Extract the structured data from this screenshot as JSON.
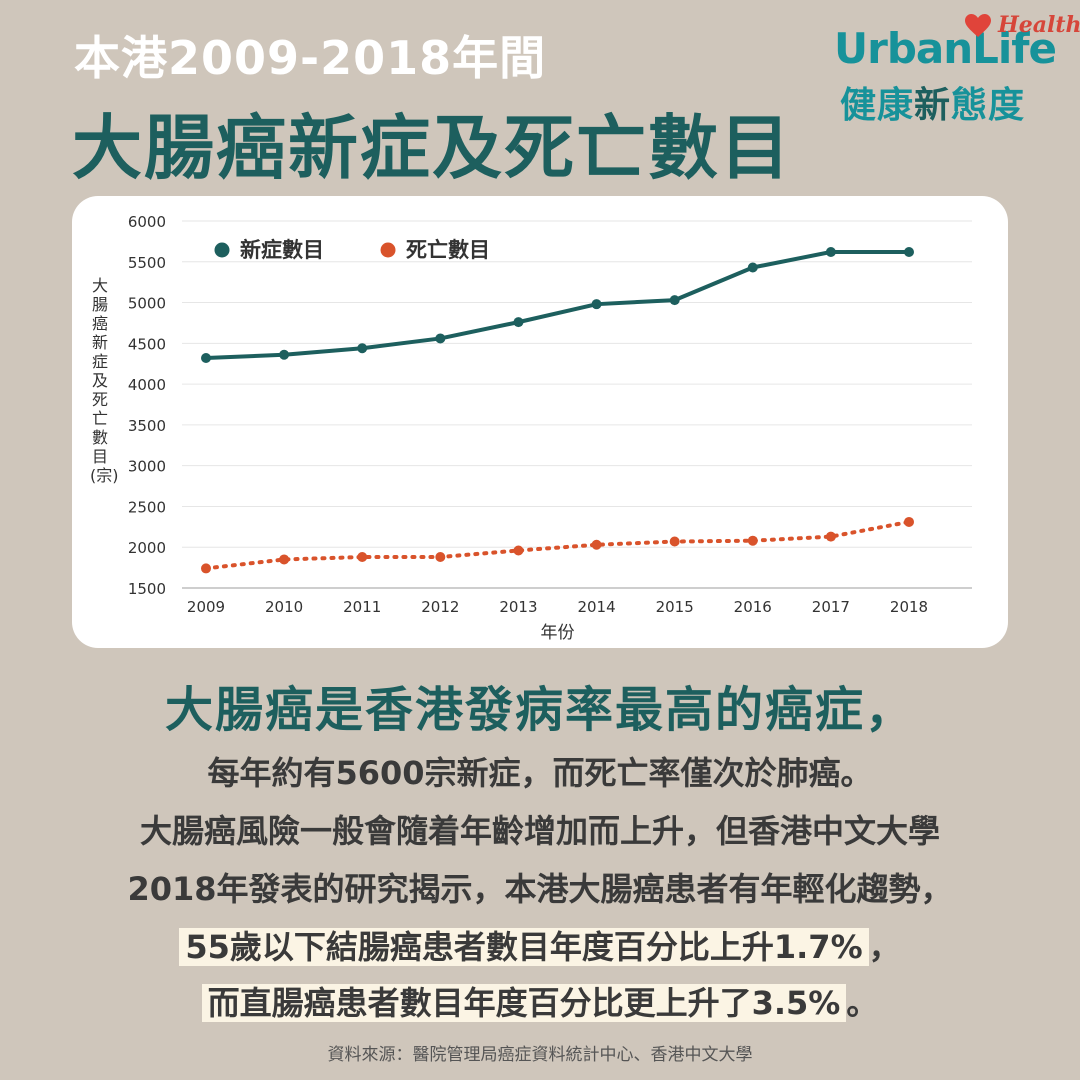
{
  "header": {
    "title_line1": "本港2009-2018年間",
    "title_line2": "大腸癌新症及死亡數目"
  },
  "logo": {
    "brand": "UrbanLife",
    "tag": "Health",
    "cn_part1": "健康",
    "cn_part2": "新",
    "cn_part3": "態度"
  },
  "chart_data": {
    "type": "line",
    "title": "",
    "xlabel": "年份",
    "ylabel": "大腸癌新症及死亡數目(宗)",
    "x": [
      "2009",
      "2010",
      "2011",
      "2012",
      "2013",
      "2014",
      "2015",
      "2016",
      "2017",
      "2018"
    ],
    "ylim": [
      1500,
      6000
    ],
    "yticks": [
      1500,
      2000,
      2500,
      3000,
      3500,
      4000,
      4500,
      5000,
      5500,
      6000
    ],
    "grid": true,
    "legend": "top-left",
    "series": [
      {
        "name": "新症數目",
        "color": "#1d5f5e",
        "style": "solid",
        "values": [
          4320,
          4360,
          4440,
          4560,
          4760,
          4980,
          5030,
          5430,
          5620,
          5620
        ]
      },
      {
        "name": "死亡數目",
        "color": "#d9532b",
        "style": "dotted",
        "values": [
          1740,
          1850,
          1880,
          1880,
          1960,
          2030,
          2070,
          2080,
          2130,
          2310
        ]
      }
    ]
  },
  "body": {
    "headline": "大腸癌是香港發病率最高的癌症，",
    "line1": "每年約有5600宗新症，而死亡率僅次於肺癌。",
    "line2": "大腸癌風險一般會隨着年齡增加而上升，但香港中文大學",
    "line3": "2018年發表的研究揭示，本港大腸癌患者有年輕化趨勢，",
    "line4_highlight": "55歲以下結腸癌患者數目年度百分比上升1.7%",
    "line4_tail": "，",
    "line5_highlight": "而直腸癌患者數目年度百分比更上升了3.5%",
    "line5_tail": "。"
  },
  "footer": {
    "source": "資料來源：醫院管理局癌症資料統計中心、香港中文大學"
  }
}
